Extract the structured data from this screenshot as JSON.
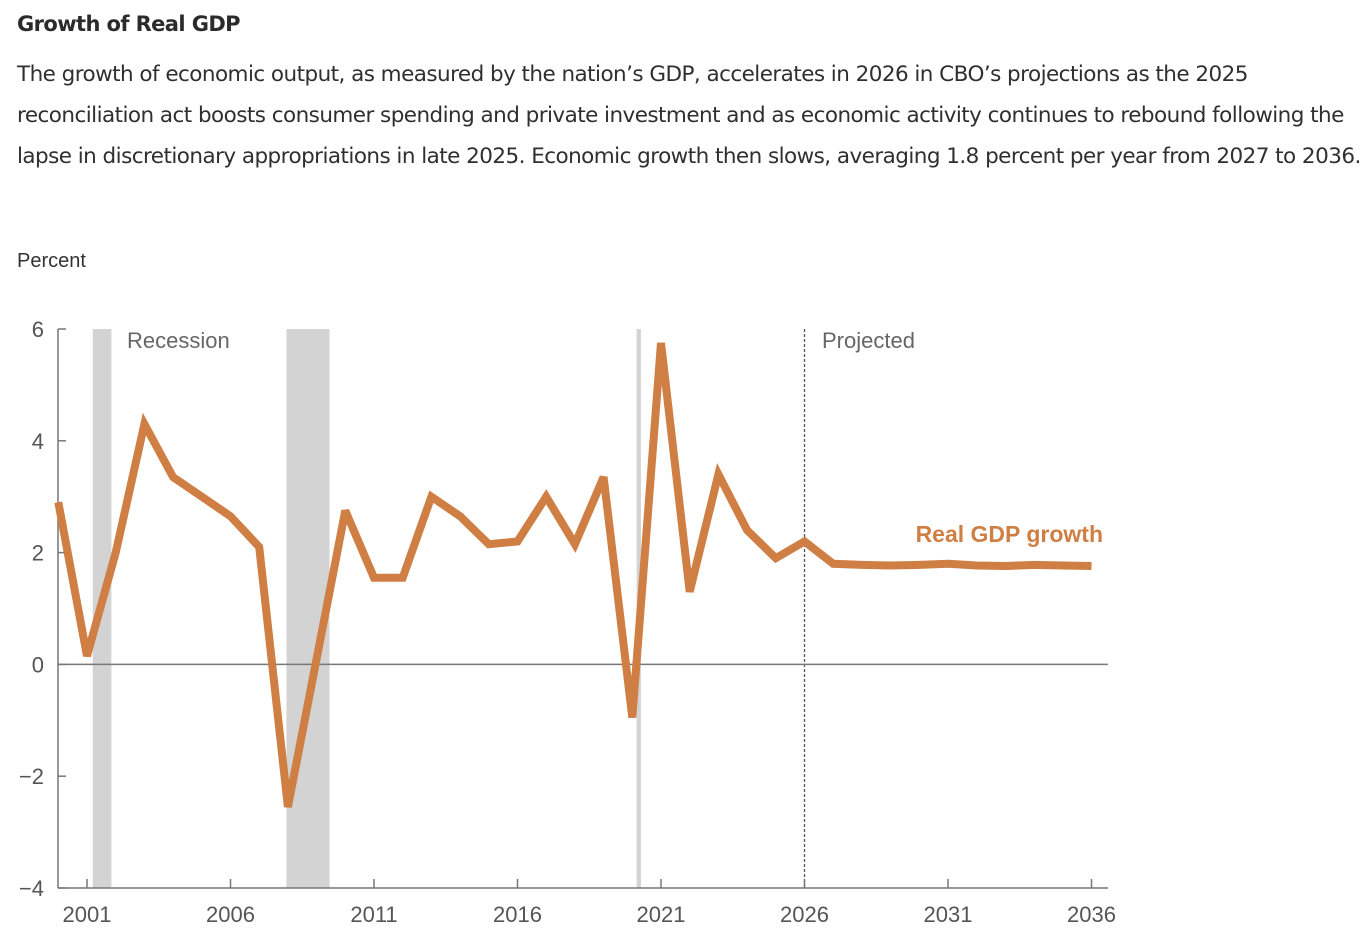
{
  "header": {
    "title": "Growth of Real GDP",
    "description": "The growth of economic output, as measured by the nation’s GDP, accelerates in 2026 in CBO’s projections as the 2025 reconciliation act boosts consumer spending and private investment and as economic activity continues to rebound following the lapse in discretionary appropriations in late 2025. Economic growth then slows, averaging 1.8 percent per year from 2027 to 2036."
  },
  "chart_data": {
    "type": "line",
    "title": "Growth of Real GDP",
    "ylabel": "Percent",
    "xlabel": "",
    "ylim": [
      -4,
      6
    ],
    "xlim": [
      2000,
      2036.5
    ],
    "y_ticks": [
      6,
      4,
      2,
      0,
      -2,
      -4
    ],
    "y_tick_labels": [
      "6",
      "4",
      "2",
      "0",
      "−2",
      "−4"
    ],
    "x_ticks": [
      2001,
      2006,
      2011,
      2016,
      2021,
      2026,
      2031,
      2036
    ],
    "x_tick_labels": [
      "2001",
      "2006",
      "2011",
      "2016",
      "2021",
      "2026",
      "2031",
      "2036"
    ],
    "grid": false,
    "zero_line": true,
    "series": [
      {
        "name": "Real GDP growth",
        "color": "#cf7e44",
        "x": [
          2000,
          2001,
          2002,
          2003,
          2004,
          2005,
          2006,
          2007,
          2008,
          2009,
          2010,
          2011,
          2012,
          2013,
          2014,
          2015,
          2016,
          2017,
          2018,
          2019,
          2020,
          2021,
          2022,
          2023,
          2024,
          2025,
          2026,
          2027,
          2028,
          2029,
          2030,
          2031,
          2032,
          2033,
          2034,
          2035,
          2036
        ],
        "values": [
          2.9,
          0.15,
          2.0,
          4.3,
          3.35,
          3.0,
          2.65,
          2.1,
          -2.55,
          0.1,
          2.75,
          1.55,
          1.55,
          3.0,
          2.65,
          2.15,
          2.2,
          3.0,
          2.15,
          3.35,
          -0.95,
          5.75,
          1.3,
          3.4,
          2.4,
          1.9,
          2.2,
          1.8,
          1.78,
          1.77,
          1.78,
          1.8,
          1.77,
          1.76,
          1.78,
          1.77,
          1.76
        ]
      }
    ],
    "shaded_regions": [
      {
        "label": "Recession",
        "start": 2001.2,
        "end": 2001.85,
        "color": "#d3d3d3"
      },
      {
        "label": "Recession",
        "start": 2007.95,
        "end": 2009.45,
        "color": "#d3d3d3"
      },
      {
        "label": "Recession",
        "start": 2020.15,
        "end": 2020.3,
        "color": "#d3d3d3"
      }
    ],
    "annotations": {
      "recession_label": "Recession",
      "projected_label": "Projected",
      "projected_start": 2026,
      "series_label": "Real GDP growth"
    }
  }
}
